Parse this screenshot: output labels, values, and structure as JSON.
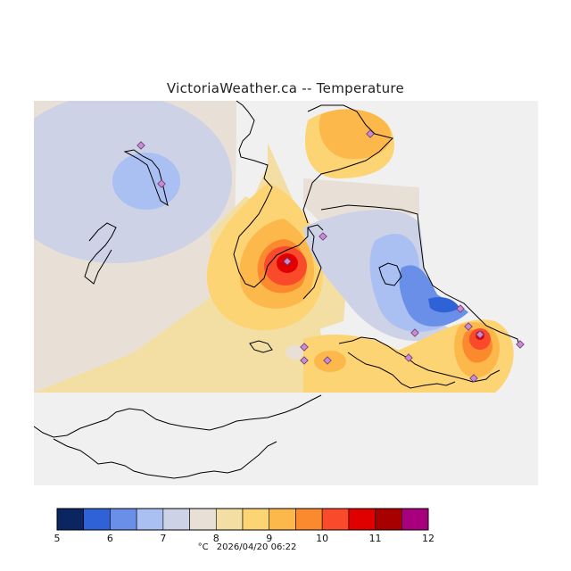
{
  "title": "VictoriaWeather.ca -- Temperature",
  "footer": {
    "unit": "°C",
    "timestamp": "2026/04/20 06:22"
  },
  "colorbar": {
    "colors": [
      "#0b2560",
      "#2f62d6",
      "#6a8fe8",
      "#aabff2",
      "#cdd2e6",
      "#e8e0d6",
      "#f3dfa4",
      "#fdd474",
      "#fcb84a",
      "#fb8a2f",
      "#f94a2c",
      "#e00000",
      "#a80000",
      "#a8007c"
    ],
    "tick_labels": [
      "5",
      "6",
      "7",
      "8",
      "9",
      "10",
      "11",
      "12"
    ]
  },
  "map": {
    "water_color": "#f0f0f0",
    "land_color": "#ffffff",
    "station_color": "#c68bd0"
  }
}
